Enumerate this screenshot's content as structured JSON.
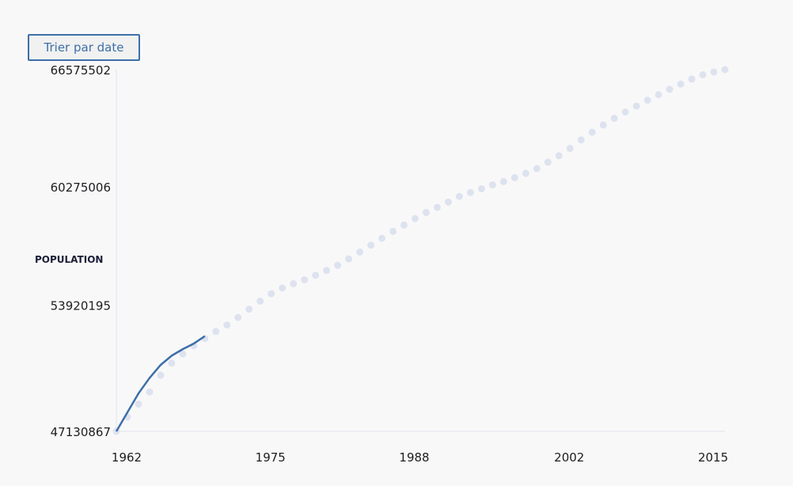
{
  "sort_button": {
    "label": "Trier par date"
  },
  "colors": {
    "line": "#3d6fa8",
    "dots": "#dde3ee",
    "axis": "#dde3ee",
    "text": "#1d1d1f",
    "background": "#f9f8f9"
  },
  "chart_data": {
    "type": "line",
    "ylabel": "POPULATION",
    "xlabel": "",
    "y_ticks": [
      "66575502",
      "60275006",
      "53920195",
      "47130867"
    ],
    "x_ticks": [
      "1962",
      "1975",
      "1988",
      "2002",
      "2015"
    ],
    "ylim": [
      47130867,
      66575502
    ],
    "xlim": [
      1962,
      2017
    ],
    "series": [
      {
        "name": "population-line",
        "x": [
          1962,
          1963,
          1964,
          1965,
          1966,
          1967,
          1968,
          1969,
          1970
        ],
        "values": [
          47130867,
          48150000,
          49170000,
          50000000,
          50700000,
          51200000,
          51550000,
          51850000,
          52250000
        ]
      },
      {
        "name": "population-dots",
        "x": [
          1962,
          1963,
          1964,
          1965,
          1966,
          1967,
          1968,
          1969,
          1970,
          1971,
          1972,
          1973,
          1974,
          1975,
          1976,
          1977,
          1978,
          1979,
          1980,
          1981,
          1982,
          1983,
          1984,
          1985,
          1986,
          1987,
          1988,
          1989,
          1990,
          1991,
          1992,
          1993,
          1994,
          1995,
          1996,
          1997,
          1998,
          1999,
          2000,
          2001,
          2002,
          2003,
          2004,
          2005,
          2006,
          2007,
          2008,
          2009,
          2010,
          2011,
          2012,
          2013,
          2014,
          2015,
          2016,
          2017
        ],
        "values": [
          47130867,
          47900000,
          48600000,
          49250000,
          50150000,
          50800000,
          51300000,
          51730000,
          52120000,
          52500000,
          52850000,
          53250000,
          53700000,
          54130000,
          54530000,
          54840000,
          55070000,
          55280000,
          55520000,
          55780000,
          56060000,
          56400000,
          56770000,
          57140000,
          57510000,
          57880000,
          58220000,
          58570000,
          58900000,
          59170000,
          59460000,
          59760000,
          59970000,
          60170000,
          60380000,
          60560000,
          60770000,
          61000000,
          61260000,
          61600000,
          61950000,
          62340000,
          62800000,
          63210000,
          63600000,
          63960000,
          64300000,
          64620000,
          64930000,
          65230000,
          65520000,
          65800000,
          66070000,
          66300000,
          66450000,
          66575502
        ]
      }
    ]
  }
}
